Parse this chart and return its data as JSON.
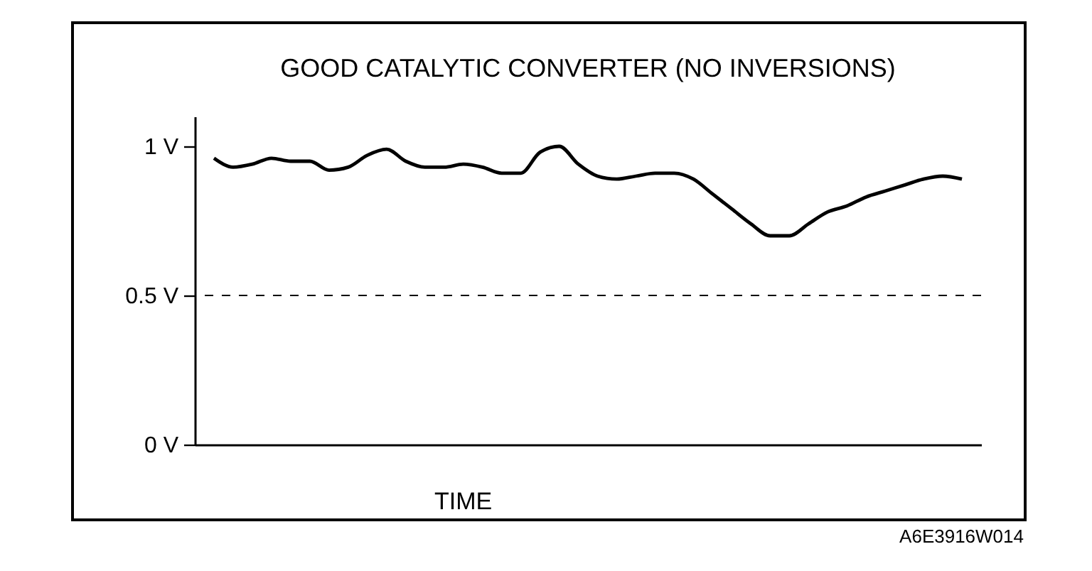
{
  "chart_data": {
    "type": "line",
    "title": "GOOD CATALYTIC CONVERTER (NO INVERSIONS)",
    "xlabel": "TIME",
    "categories": [
      null,
      null,
      null,
      null,
      null,
      null,
      null,
      null,
      null,
      null,
      null,
      null,
      null,
      null,
      null,
      null,
      null,
      null,
      null,
      null,
      null,
      null,
      null,
      null,
      null,
      null,
      null,
      null,
      null,
      null,
      null,
      null,
      null,
      null,
      null,
      null,
      null,
      null,
      null,
      null
    ],
    "values": [
      0.96,
      0.93,
      0.94,
      0.96,
      0.95,
      0.95,
      0.92,
      0.93,
      0.97,
      0.99,
      0.95,
      0.93,
      0.93,
      0.94,
      0.93,
      0.91,
      0.91,
      0.98,
      1.0,
      0.94,
      0.9,
      0.89,
      0.9,
      0.91,
      0.91,
      0.89,
      0.84,
      0.79,
      0.74,
      0.7,
      0.7,
      0.74,
      0.78,
      0.8,
      0.83,
      0.85,
      0.87,
      0.89,
      0.9,
      0.89
    ],
    "color": "#000000",
    "ylim": [
      0,
      1.1
    ],
    "yticks": [
      {
        "value": 0,
        "label": "0 V"
      },
      {
        "value": 0.5,
        "label": "0.5 V"
      },
      {
        "value": 1,
        "label": "1 V"
      }
    ],
    "ref_lines": [
      {
        "axis": "y",
        "value": 0.5,
        "line_style": "dashed",
        "color": "#000000"
      }
    ],
    "tick_labels": "y",
    "annotations": [
      "A6E3916W014"
    ]
  }
}
